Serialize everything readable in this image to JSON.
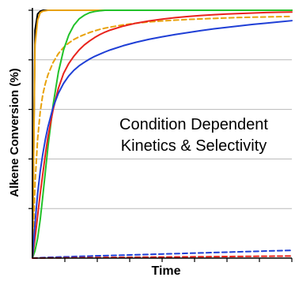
{
  "chart_data": {
    "type": "line",
    "title": "",
    "xlabel": "Time",
    "ylabel": "Alkene Conversion (%)",
    "xlim": [
      0,
      100
    ],
    "ylim": [
      0,
      100
    ],
    "grid": true,
    "x_tick_labels_shown": false,
    "y_tick_labels_shown": false,
    "annotation": [
      "Condition Dependent",
      "Kinetics & Selectivity"
    ],
    "x": [
      0,
      1,
      2,
      3,
      4,
      5,
      6,
      8,
      10,
      12,
      14,
      16,
      18,
      20,
      22,
      24,
      26,
      28,
      30,
      35,
      40,
      45,
      50,
      55,
      60,
      65,
      70,
      75,
      80,
      85,
      90,
      95,
      100
    ],
    "series": [
      {
        "color": "#000000",
        "dash": false,
        "values": [
          0,
          92,
          98.5,
          99.6,
          100,
          100,
          100,
          100,
          100,
          100,
          100,
          100,
          100,
          100,
          100,
          100,
          100,
          100,
          100,
          100,
          100,
          100,
          100,
          100,
          100,
          100,
          100,
          100,
          100,
          100,
          100,
          100,
          100
        ]
      },
      {
        "color": "#e8a20c",
        "dash": false,
        "values": [
          0,
          86,
          96,
          99,
          99.6,
          99.8,
          100,
          100,
          100,
          100,
          100,
          100,
          100,
          100,
          100,
          100,
          100,
          100,
          100,
          100,
          100,
          100,
          100,
          100,
          100,
          100,
          100,
          100,
          100,
          100,
          100,
          100,
          100
        ]
      },
      {
        "color": "#e8a20c",
        "dash": true,
        "values": [
          0,
          30,
          48,
          59,
          66,
          70.5,
          74,
          79,
          82.5,
          85,
          86.8,
          88.2,
          89.3,
          90.2,
          91,
          91.7,
          92.3,
          92.8,
          93.2,
          94.1,
          94.8,
          95.3,
          95.7,
          96,
          96.3,
          96.5,
          96.7,
          96.9,
          97.1,
          97.2,
          97.3,
          97.4,
          97.5
        ]
      },
      {
        "color": "#22c22a",
        "dash": false,
        "values": [
          0,
          3,
          8,
          15.5,
          25,
          35,
          45,
          62,
          75,
          84,
          90,
          94,
          96.5,
          98,
          99,
          99.5,
          99.8,
          100,
          100,
          100,
          100,
          100,
          100,
          100,
          100,
          100,
          100,
          100,
          100,
          100,
          100,
          100,
          100
        ]
      },
      {
        "color": "#e8231c",
        "dash": false,
        "values": [
          0,
          8,
          17,
          26,
          34,
          42,
          49,
          60,
          68.5,
          74.5,
          78.5,
          81.5,
          84,
          86,
          87.6,
          89,
          90.2,
          91.2,
          92,
          93.6,
          94.8,
          95.7,
          96.4,
          97,
          97.5,
          97.9,
          98.2,
          98.5,
          98.7,
          98.9,
          99.1,
          99.2,
          99.3
        ]
      },
      {
        "color": "#1f3fd6",
        "dash": false,
        "values": [
          0,
          14,
          26,
          35,
          42,
          48,
          53,
          61,
          66.5,
          70.5,
          73.5,
          75.8,
          77.6,
          79,
          80.3,
          81.4,
          82.3,
          83.2,
          84,
          85.7,
          87.1,
          88.3,
          89.3,
          90.2,
          91,
          91.8,
          92.5,
          93.1,
          93.7,
          94.3,
          94.8,
          95.3,
          95.8
        ]
      },
      {
        "color": "#1f3fd6",
        "dash": true,
        "values": [
          0,
          0.05,
          0.1,
          0.15,
          0.2,
          0.25,
          0.3,
          0.35,
          0.45,
          0.5,
          0.55,
          0.65,
          0.7,
          0.75,
          0.8,
          0.9,
          0.95,
          1.0,
          1.05,
          1.2,
          1.35,
          1.5,
          1.65,
          1.8,
          1.95,
          2.1,
          2.25,
          2.4,
          2.55,
          2.7,
          2.85,
          3.0,
          3.1
        ]
      },
      {
        "color": "#e8231c",
        "dash": true,
        "values": [
          0,
          0.01,
          0.02,
          0.03,
          0.04,
          0.05,
          0.06,
          0.07,
          0.08,
          0.1,
          0.12,
          0.14,
          0.16,
          0.18,
          0.2,
          0.22,
          0.24,
          0.26,
          0.28,
          0.32,
          0.36,
          0.4,
          0.44,
          0.48,
          0.52,
          0.56,
          0.6,
          0.64,
          0.68,
          0.72,
          0.76,
          0.8,
          0.85
        ]
      }
    ]
  }
}
